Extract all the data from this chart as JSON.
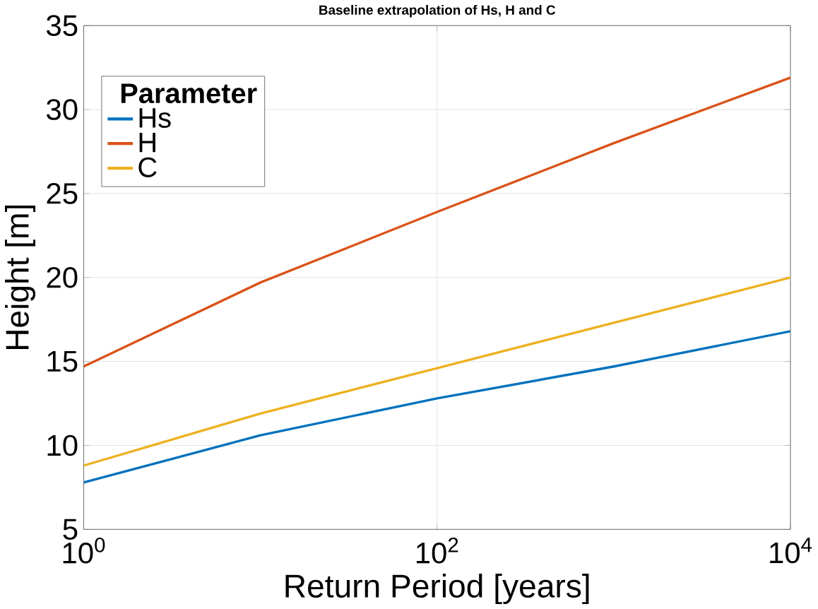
{
  "chart_data": {
    "type": "line",
    "title": "Baseline extrapolation of Hs, H and C",
    "xlabel": "Return Period [years]",
    "ylabel": "Height [m]",
    "legend_title": "Parameter",
    "log": "x",
    "grid": true,
    "legend": "top left",
    "x": [
      1,
      10,
      100,
      1000,
      10000
    ],
    "series": [
      {
        "name": "Hs",
        "color": "#0072bd",
        "values": [
          7.8,
          10.6,
          12.8,
          14.7,
          16.8
        ]
      },
      {
        "name": "H",
        "color": "#d95319",
        "values": [
          14.7,
          19.7,
          23.9,
          28.0,
          31.9
        ]
      },
      {
        "name": "C",
        "color": "#edb120",
        "values": [
          8.8,
          11.9,
          14.6,
          17.3,
          20.0
        ]
      }
    ],
    "xlim": [
      1,
      10000
    ],
    "xticks": [
      {
        "value": 1,
        "label": "10$^{0}$"
      },
      {
        "value": 100,
        "label": "10$^{2}$"
      },
      {
        "value": 10000,
        "label": "10$^{4}$"
      }
    ],
    "ylim": [
      5,
      35
    ],
    "yticks": [
      5,
      10,
      15,
      20,
      25,
      30,
      35
    ]
  }
}
